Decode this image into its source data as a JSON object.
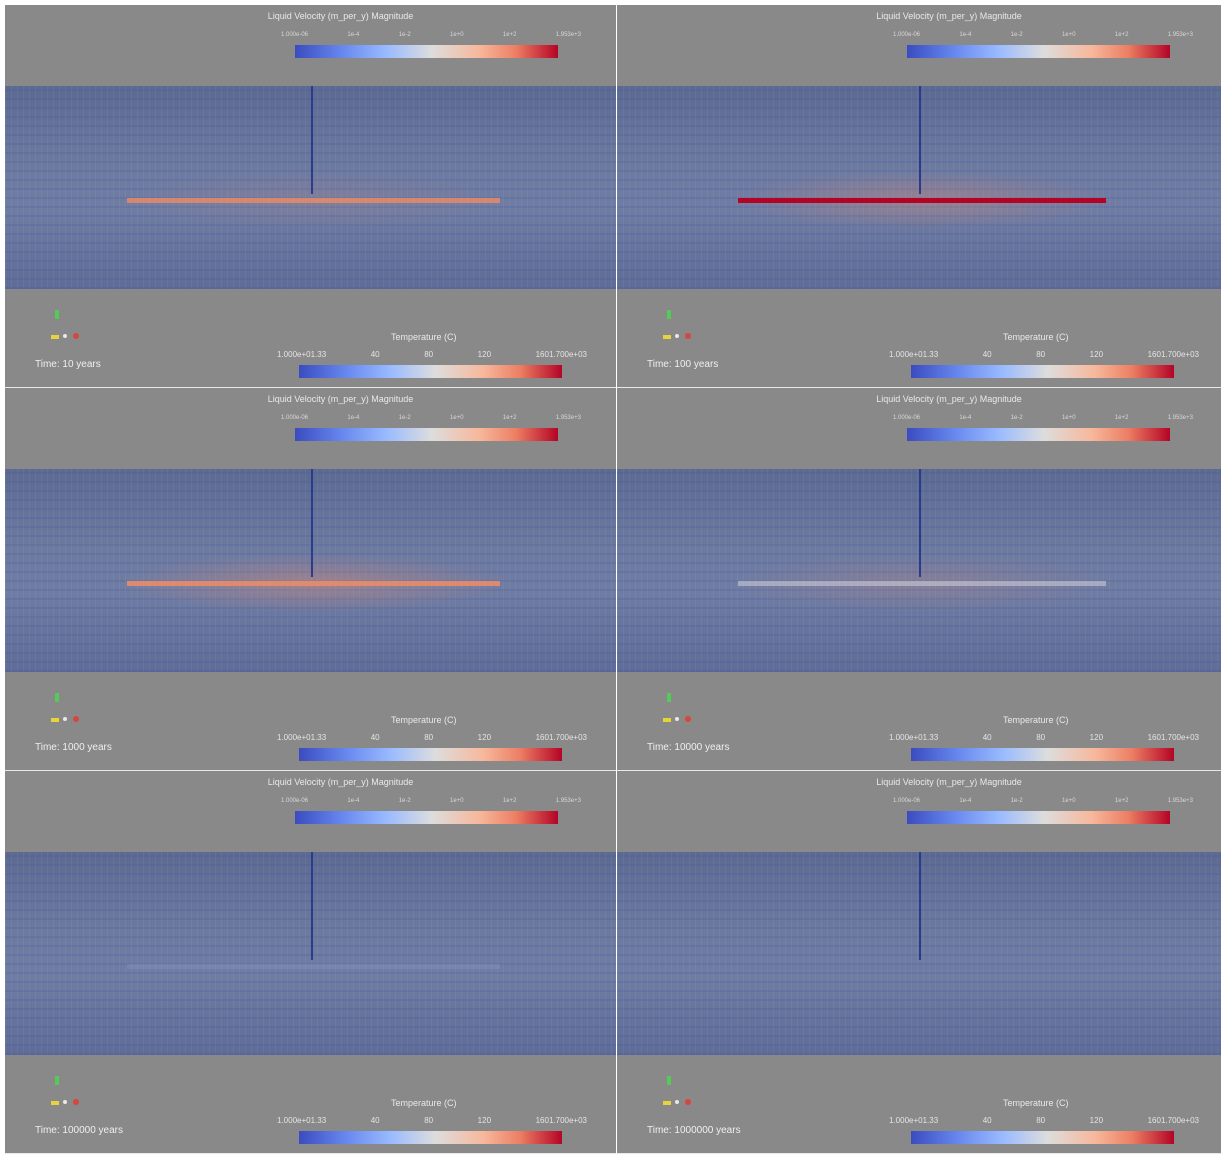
{
  "colors": {
    "panel_bg": "#898989",
    "cool": "#3b4cc0",
    "hot": "#b40426"
  },
  "velocity_legend": {
    "title": "Liquid Velocity (m_per_y) Magnitude",
    "ticks": [
      "1.000e-06",
      "1e-4",
      "1e-2",
      "1e+0",
      "1e+2",
      "1.953e+3"
    ]
  },
  "temperature_legend": {
    "title": "Temperature (C)",
    "ticks": [
      "1.000e+01.33",
      "40",
      "80",
      "120",
      "1601.700e+03"
    ]
  },
  "panels": [
    {
      "time": "Time: 10 years",
      "heater_color": "#e58a68",
      "heater_opacity": 0.85,
      "glow": 0.15
    },
    {
      "time": "Time: 100 years",
      "heater_color": "#b40426",
      "heater_opacity": 1,
      "glow": 0.35
    },
    {
      "time": "Time: 1000 years",
      "heater_color": "#e88c6a",
      "heater_opacity": 0.9,
      "glow": 0.4
    },
    {
      "time": "Time: 10000 years",
      "heater_color": "#c9c9d6",
      "heater_opacity": 0.6,
      "glow": 0.2
    },
    {
      "time": "Time: 100000 years",
      "heater_color": "#8f9bc2",
      "heater_opacity": 0.3,
      "glow": 0.0
    },
    {
      "time": "Time: 1000000 years",
      "heater_color": "#6a7ab0",
      "heater_opacity": 0.2,
      "glow": 0.0
    }
  ]
}
